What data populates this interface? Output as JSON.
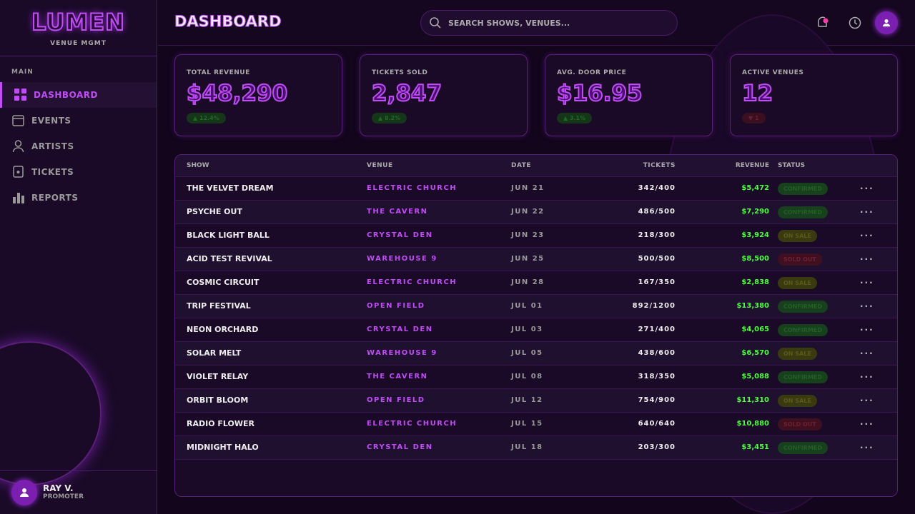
{
  "sidebar": {
    "logo": "LUMEN",
    "tagline": "VENUE MGMT",
    "section": "MAIN",
    "nav": [
      "DASHBOARD",
      "EVENTS",
      "ARTISTS",
      "TICKETS",
      "REPORTS"
    ],
    "user": {
      "name": "RAY V.",
      "role": "PROMOTER"
    }
  },
  "header": {
    "title": "DASHBOARD",
    "search_placeholder": "SEARCH SHOWS, VENUES..."
  },
  "kpis": [
    {
      "label": "TOTAL REVENUE",
      "value": "$48,290",
      "delta": "▲ 12.4%"
    },
    {
      "label": "TICKETS SOLD",
      "value": "2,847",
      "delta": "▲ 8.2%"
    },
    {
      "label": "AVG. DOOR PRICE",
      "value": "$16.95",
      "delta": "▲ 3.1%"
    },
    {
      "label": "ACTIVE VENUES",
      "value": "12",
      "delta": "▼ 1"
    }
  ],
  "table": {
    "columns": [
      "SHOW",
      "VENUE",
      "DATE",
      "TICKETS",
      "REVENUE",
      "STATUS"
    ],
    "rows": [
      [
        "THE VELVET DREAM",
        "ELECTRIC CHURCH",
        "JUN 21",
        "342/400",
        "$5,472",
        "CONFIRMED"
      ],
      [
        "PSYCHE OUT",
        "THE CAVERN",
        "JUN 22",
        "486/500",
        "$7,290",
        "CONFIRMED"
      ],
      [
        "BLACK LIGHT BALL",
        "CRYSTAL DEN",
        "JUN 23",
        "218/300",
        "$3,924",
        "ON SALE"
      ],
      [
        "ACID TEST REVIVAL",
        "WAREHOUSE 9",
        "JUN 25",
        "500/500",
        "$8,500",
        "SOLD OUT"
      ],
      [
        "COSMIC CIRCUIT",
        "ELECTRIC CHURCH",
        "JUN 28",
        "167/350",
        "$2,838",
        "ON SALE"
      ],
      [
        "TRIP FESTIVAL",
        "OPEN FIELD",
        "JUL 01",
        "892/1200",
        "$13,380",
        "CONFIRMED"
      ],
      [
        "NEON ORCHARD",
        "CRYSTAL DEN",
        "JUL 03",
        "271/400",
        "$4,065",
        "CONFIRMED"
      ],
      [
        "SOLAR MELT",
        "WAREHOUSE 9",
        "JUL 05",
        "438/600",
        "$6,570",
        "ON SALE"
      ],
      [
        "VIOLET RELAY",
        "THE CAVERN",
        "JUL 08",
        "318/350",
        "$5,088",
        "CONFIRMED"
      ],
      [
        "ORBIT BLOOM",
        "OPEN FIELD",
        "JUL 12",
        "754/900",
        "$11,310",
        "ON SALE"
      ],
      [
        "RADIO FLOWER",
        "ELECTRIC CHURCH",
        "JUL 15",
        "640/640",
        "$10,880",
        "SOLD OUT"
      ],
      [
        "MIDNIGHT HALO",
        "CRYSTAL DEN",
        "JUL 18",
        "203/300",
        "$3,451",
        "CONFIRMED"
      ]
    ]
  }
}
